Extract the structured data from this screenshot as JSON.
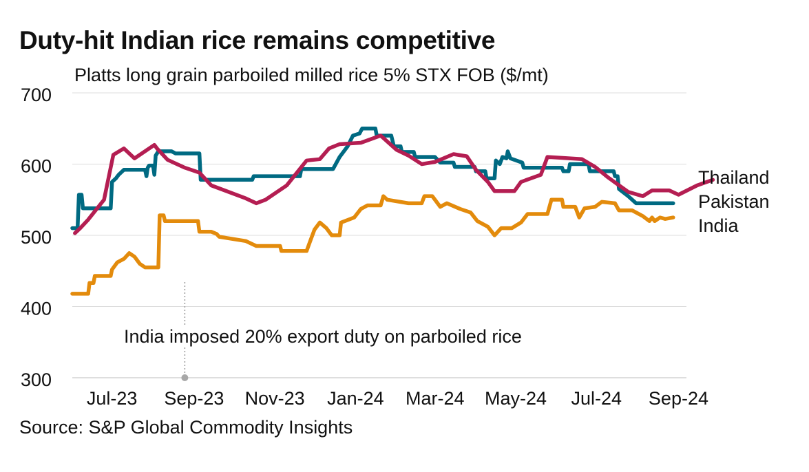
{
  "title": "Duty-hit Indian rice remains competitive",
  "source": "Source: S&P Global Commodity Insights",
  "chart_data": {
    "type": "line",
    "subtitle": "Platts long grain parboiled milled rice 5% STX FOB ($/mt)",
    "xlabel": "",
    "ylabel": "",
    "ylim": [
      300,
      700
    ],
    "yticks": [
      300,
      400,
      500,
      600,
      700
    ],
    "xlim": [
      "2023-06-01",
      "2024-09-07"
    ],
    "xticks": [
      {
        "date": "2023-07-01",
        "label": "Jul-23"
      },
      {
        "date": "2023-09-01",
        "label": "Sep-23"
      },
      {
        "date": "2023-11-01",
        "label": "Nov-23"
      },
      {
        "date": "2024-01-01",
        "label": "Jan-24"
      },
      {
        "date": "2024-03-01",
        "label": "Mar-24"
      },
      {
        "date": "2024-05-01",
        "label": "May-24"
      },
      {
        "date": "2024-07-01",
        "label": "Jul-24"
      },
      {
        "date": "2024-09-01",
        "label": "Sep-24"
      }
    ],
    "grid": true,
    "legend": "direct labels at right end of lines",
    "annotation": {
      "text": "India imposed 20% export duty on parboiled rice",
      "date": "2023-08-25",
      "value": 300
    },
    "series": [
      {
        "name": "Thailand",
        "color": "#006a82",
        "points": [
          [
            "2023-06-01",
            510
          ],
          [
            "2023-06-05",
            510
          ],
          [
            "2023-06-06",
            557
          ],
          [
            "2023-06-08",
            557
          ],
          [
            "2023-06-09",
            538
          ],
          [
            "2023-06-30",
            538
          ],
          [
            "2023-07-01",
            575
          ],
          [
            "2023-07-04",
            580
          ],
          [
            "2023-07-06",
            585
          ],
          [
            "2023-07-10",
            592
          ],
          [
            "2023-07-26",
            592
          ],
          [
            "2023-07-27",
            583
          ],
          [
            "2023-07-28",
            595
          ],
          [
            "2023-07-29",
            598
          ],
          [
            "2023-08-01",
            598
          ],
          [
            "2023-08-02",
            585
          ],
          [
            "2023-08-03",
            612
          ],
          [
            "2023-08-05",
            618
          ],
          [
            "2023-08-15",
            618
          ],
          [
            "2023-08-18",
            615
          ],
          [
            "2023-09-05",
            615
          ],
          [
            "2023-09-06",
            578
          ],
          [
            "2023-10-15",
            578
          ],
          [
            "2023-10-16",
            583
          ],
          [
            "2023-11-20",
            583
          ],
          [
            "2023-11-21",
            593
          ],
          [
            "2023-12-15",
            593
          ],
          [
            "2023-12-20",
            610
          ],
          [
            "2023-12-26",
            625
          ],
          [
            "2023-12-30",
            640
          ],
          [
            "2024-01-04",
            643
          ],
          [
            "2024-01-06",
            650
          ],
          [
            "2024-01-16",
            650
          ],
          [
            "2024-01-17",
            640
          ],
          [
            "2024-01-28",
            640
          ],
          [
            "2024-01-30",
            625
          ],
          [
            "2024-02-04",
            625
          ],
          [
            "2024-02-05",
            617
          ],
          [
            "2024-02-14",
            617
          ],
          [
            "2024-02-15",
            610
          ],
          [
            "2024-03-01",
            610
          ],
          [
            "2024-03-05",
            602
          ],
          [
            "2024-03-15",
            602
          ],
          [
            "2024-03-16",
            596
          ],
          [
            "2024-03-31",
            596
          ],
          [
            "2024-04-01",
            590
          ],
          [
            "2024-04-08",
            590
          ],
          [
            "2024-04-09",
            580
          ],
          [
            "2024-04-15",
            580
          ],
          [
            "2024-04-16",
            605
          ],
          [
            "2024-04-19",
            600
          ],
          [
            "2024-04-21",
            610
          ],
          [
            "2024-04-24",
            608
          ],
          [
            "2024-04-25",
            618
          ],
          [
            "2024-04-27",
            608
          ],
          [
            "2024-05-06",
            602
          ],
          [
            "2024-05-07",
            595
          ],
          [
            "2024-06-05",
            595
          ],
          [
            "2024-06-06",
            590
          ],
          [
            "2024-06-10",
            590
          ],
          [
            "2024-06-11",
            600
          ],
          [
            "2024-06-25",
            600
          ],
          [
            "2024-06-26",
            590
          ],
          [
            "2024-07-14",
            590
          ],
          [
            "2024-07-15",
            583
          ],
          [
            "2024-07-17",
            583
          ],
          [
            "2024-07-18",
            565
          ],
          [
            "2024-07-25",
            555
          ],
          [
            "2024-07-31",
            545
          ],
          [
            "2024-08-28",
            545
          ]
        ]
      },
      {
        "name": "Pakistan",
        "color": "#b41e52",
        "points": [
          [
            "2023-06-03",
            503
          ],
          [
            "2023-06-07",
            510
          ],
          [
            "2023-06-13",
            522
          ],
          [
            "2023-06-25",
            550
          ],
          [
            "2023-07-02",
            613
          ],
          [
            "2023-07-10",
            622
          ],
          [
            "2023-07-18",
            608
          ],
          [
            "2023-08-02",
            627
          ],
          [
            "2023-08-04",
            622
          ],
          [
            "2023-08-12",
            606
          ],
          [
            "2023-08-25",
            595
          ],
          [
            "2023-09-05",
            588
          ],
          [
            "2023-09-14",
            570
          ],
          [
            "2023-10-10",
            552
          ],
          [
            "2023-10-18",
            545
          ],
          [
            "2023-10-25",
            550
          ],
          [
            "2023-11-10",
            570
          ],
          [
            "2023-11-25",
            605
          ],
          [
            "2023-12-05",
            607
          ],
          [
            "2023-12-12",
            622
          ],
          [
            "2023-12-20",
            628
          ],
          [
            "2024-01-05",
            630
          ],
          [
            "2024-01-20",
            640
          ],
          [
            "2024-02-01",
            620
          ],
          [
            "2024-02-10",
            612
          ],
          [
            "2024-02-20",
            600
          ],
          [
            "2024-03-01",
            603
          ],
          [
            "2024-03-15",
            614
          ],
          [
            "2024-03-25",
            611
          ],
          [
            "2024-04-01",
            592
          ],
          [
            "2024-04-10",
            575
          ],
          [
            "2024-04-15",
            562
          ],
          [
            "2024-04-30",
            562
          ],
          [
            "2024-05-05",
            575
          ],
          [
            "2024-05-20",
            585
          ],
          [
            "2024-05-25",
            610
          ],
          [
            "2024-06-20",
            607
          ],
          [
            "2024-06-30",
            596
          ],
          [
            "2024-07-10",
            581
          ],
          [
            "2024-07-25",
            561
          ],
          [
            "2024-08-05",
            555
          ],
          [
            "2024-08-12",
            563
          ],
          [
            "2024-08-25",
            563
          ],
          [
            "2024-09-01",
            557
          ],
          [
            "2024-09-15",
            570
          ],
          [
            "2024-09-27",
            578
          ]
        ]
      },
      {
        "name": "India",
        "color": "#e38b0c",
        "points": [
          [
            "2023-06-01",
            418
          ],
          [
            "2023-06-13",
            418
          ],
          [
            "2023-06-14",
            433
          ],
          [
            "2023-06-17",
            433
          ],
          [
            "2023-06-18",
            443
          ],
          [
            "2023-06-30",
            443
          ],
          [
            "2023-07-01",
            452
          ],
          [
            "2023-07-05",
            462
          ],
          [
            "2023-07-10",
            467
          ],
          [
            "2023-07-14",
            475
          ],
          [
            "2023-07-18",
            470
          ],
          [
            "2023-07-22",
            460
          ],
          [
            "2023-07-26",
            455
          ],
          [
            "2023-08-05",
            455
          ],
          [
            "2023-08-06",
            528
          ],
          [
            "2023-08-09",
            528
          ],
          [
            "2023-08-10",
            520
          ],
          [
            "2023-09-04",
            520
          ],
          [
            "2023-09-05",
            505
          ],
          [
            "2023-09-14",
            505
          ],
          [
            "2023-09-18",
            502
          ],
          [
            "2023-09-20",
            498
          ],
          [
            "2023-10-10",
            492
          ],
          [
            "2023-10-18",
            485
          ],
          [
            "2023-11-05",
            485
          ],
          [
            "2023-11-06",
            478
          ],
          [
            "2023-11-25",
            478
          ],
          [
            "2023-11-28",
            493
          ],
          [
            "2023-12-01",
            508
          ],
          [
            "2023-12-05",
            518
          ],
          [
            "2023-12-10",
            510
          ],
          [
            "2023-12-14",
            500
          ],
          [
            "2023-12-20",
            500
          ],
          [
            "2023-12-21",
            518
          ],
          [
            "2023-12-31",
            525
          ],
          [
            "2024-01-05",
            537
          ],
          [
            "2024-01-10",
            542
          ],
          [
            "2024-01-20",
            542
          ],
          [
            "2024-01-22",
            555
          ],
          [
            "2024-01-25",
            550
          ],
          [
            "2024-02-10",
            545
          ],
          [
            "2024-02-20",
            545
          ],
          [
            "2024-02-22",
            555
          ],
          [
            "2024-02-28",
            555
          ],
          [
            "2024-03-05",
            540
          ],
          [
            "2024-03-10",
            545
          ],
          [
            "2024-03-20",
            537
          ],
          [
            "2024-03-28",
            532
          ],
          [
            "2024-04-02",
            520
          ],
          [
            "2024-04-10",
            512
          ],
          [
            "2024-04-15",
            500
          ],
          [
            "2024-04-20",
            510
          ],
          [
            "2024-04-28",
            510
          ],
          [
            "2024-05-05",
            518
          ],
          [
            "2024-05-10",
            530
          ],
          [
            "2024-05-25",
            530
          ],
          [
            "2024-05-28",
            550
          ],
          [
            "2024-06-05",
            550
          ],
          [
            "2024-06-06",
            540
          ],
          [
            "2024-06-15",
            540
          ],
          [
            "2024-06-18",
            525
          ],
          [
            "2024-06-22",
            538
          ],
          [
            "2024-06-30",
            540
          ],
          [
            "2024-07-05",
            547
          ],
          [
            "2024-07-15",
            545
          ],
          [
            "2024-07-18",
            535
          ],
          [
            "2024-07-28",
            535
          ],
          [
            "2024-08-05",
            527
          ],
          [
            "2024-08-10",
            520
          ],
          [
            "2024-08-12",
            525
          ],
          [
            "2024-08-14",
            520
          ],
          [
            "2024-08-18",
            525
          ],
          [
            "2024-08-22",
            523
          ],
          [
            "2024-08-28",
            525
          ]
        ]
      }
    ]
  }
}
